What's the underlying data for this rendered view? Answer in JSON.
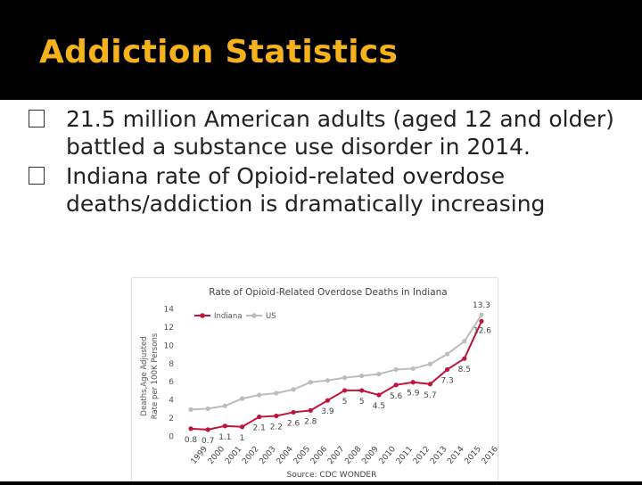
{
  "slide": {
    "title": "Addiction Statistics",
    "bullets": [
      "21.5 million American adults (aged 12 and older) battled a substance use disorder in 2014.",
      "Indiana rate of Opioid-related overdose deaths/addiction is dramatically increasing"
    ],
    "colors": {
      "title": "#f5b21a",
      "background": "#000000",
      "content_bg": "#ffffff"
    }
  },
  "chart_data": {
    "type": "line",
    "title": "Rate of Opioid-Related Overdose Deaths in Indiana",
    "ylabel": "Deaths,Age Adjusted Rate per 100K Persons",
    "xlabel": "",
    "source": "Source: CDC WONDER",
    "ylim": [
      0,
      14
    ],
    "yticks": [
      0,
      2,
      4,
      6,
      8,
      10,
      12,
      14
    ],
    "legend_position": "top-left",
    "categories": [
      "1999",
      "2000",
      "2001",
      "2002",
      "2003",
      "2004",
      "2005",
      "2006",
      "2007",
      "2008",
      "2009",
      "2010",
      "2011",
      "2012",
      "2013",
      "2014",
      "2015",
      "2016"
    ],
    "series": [
      {
        "name": "Indiana",
        "color": "#c0143c",
        "values": [
          0.8,
          0.7,
          1.1,
          1,
          2.1,
          2.2,
          2.6,
          2.8,
          3.9,
          5,
          5,
          4.5,
          5.6,
          5.9,
          5.7,
          7.3,
          8.5,
          12.6
        ],
        "labels": [
          "0.8",
          "0.7",
          "1.1",
          "1",
          "2.1",
          "2.2",
          "2.6",
          "2.8",
          "3.9",
          "5",
          "5",
          "4.5",
          "5.6",
          "5.9",
          "5.7",
          "7.3",
          "8.5",
          "12.6"
        ]
      },
      {
        "name": "US",
        "color": "#bcbcbc",
        "values": [
          2.9,
          3.0,
          3.3,
          4.1,
          4.5,
          4.7,
          5.1,
          5.9,
          6.1,
          6.4,
          6.6,
          6.8,
          7.3,
          7.4,
          7.9,
          9.0,
          10.4,
          13.3
        ],
        "labels": [
          "",
          "",
          "",
          "",
          "",
          "",
          "",
          "",
          "",
          "",
          "",
          "",
          "",
          "",
          "",
          "",
          "",
          "13.3"
        ]
      }
    ],
    "grid": false
  }
}
